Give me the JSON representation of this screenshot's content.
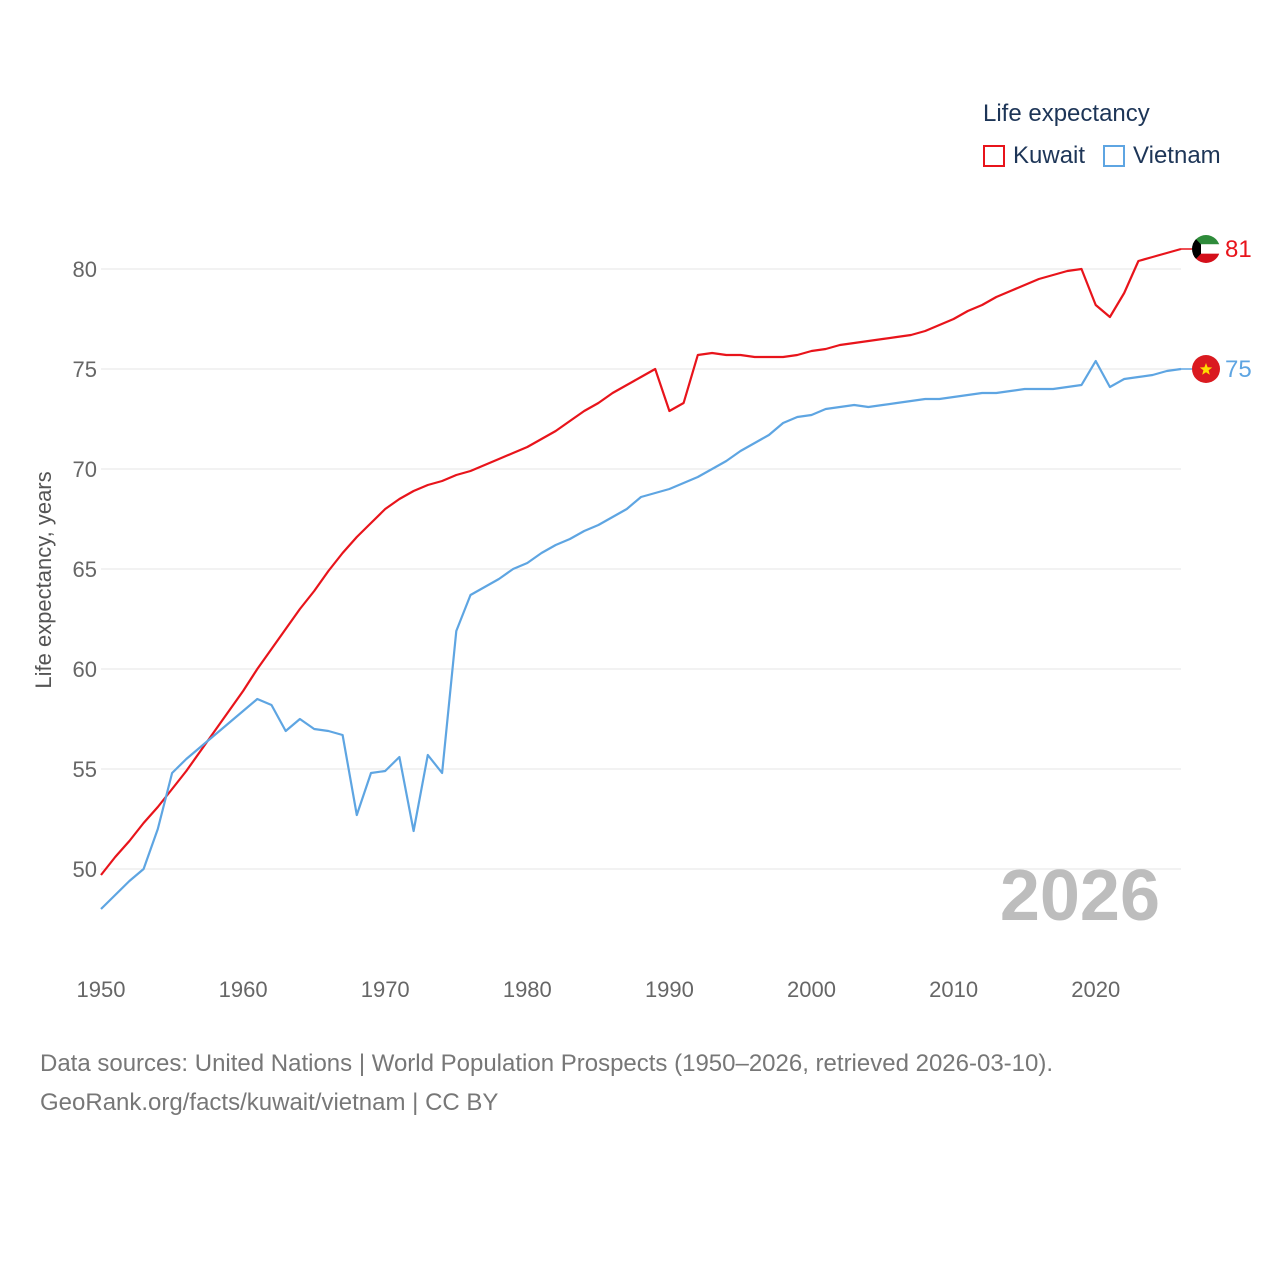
{
  "legend": {
    "title": "Life expectancy",
    "items": [
      {
        "label": "Kuwait",
        "color": "#e8141b"
      },
      {
        "label": "Vietnam",
        "color": "#5ea5e2"
      }
    ]
  },
  "footer": {
    "line1": "Data sources: United Nations | World Population Prospects (1950–2026, retrieved 2026-03-10).",
    "line2": "GeoRank.org/facts/kuwait/vietnam | CC BY"
  },
  "chart_data": {
    "type": "line",
    "title": "",
    "xlabel": "",
    "ylabel": "Life expectancy, years",
    "xlim": [
      1950,
      2026
    ],
    "ylim": [
      46.5,
      83
    ],
    "x_ticks": [
      "1950",
      "1960",
      "1970",
      "1980",
      "1990",
      "2000",
      "2010",
      "2020"
    ],
    "y_ticks": [
      "50",
      "55",
      "60",
      "65",
      "70",
      "75",
      "80"
    ],
    "year_label": "2026",
    "x": [
      1950,
      1951,
      1952,
      1953,
      1954,
      1955,
      1956,
      1957,
      1958,
      1959,
      1960,
      1961,
      1962,
      1963,
      1964,
      1965,
      1966,
      1967,
      1968,
      1969,
      1970,
      1971,
      1972,
      1973,
      1974,
      1975,
      1976,
      1977,
      1978,
      1979,
      1980,
      1981,
      1982,
      1983,
      1984,
      1985,
      1986,
      1987,
      1988,
      1989,
      1990,
      1991,
      1992,
      1993,
      1994,
      1995,
      1996,
      1997,
      1998,
      1999,
      2000,
      2001,
      2002,
      2003,
      2004,
      2005,
      2006,
      2007,
      2008,
      2009,
      2010,
      2011,
      2012,
      2013,
      2014,
      2015,
      2016,
      2017,
      2018,
      2019,
      2020,
      2021,
      2022,
      2023,
      2024,
      2025,
      2026
    ],
    "series": [
      {
        "name": "Kuwait",
        "color": "#e8141b",
        "end_label": "81",
        "flag": "kuwait-flag-icon",
        "values": [
          49.7,
          50.6,
          51.4,
          52.3,
          53.1,
          54.0,
          54.9,
          55.9,
          56.9,
          57.9,
          58.9,
          60.0,
          61.0,
          62.0,
          63.0,
          63.9,
          64.9,
          65.8,
          66.6,
          67.3,
          68.0,
          68.5,
          68.9,
          69.2,
          69.4,
          69.7,
          69.9,
          70.2,
          70.5,
          70.8,
          71.1,
          71.5,
          71.9,
          72.4,
          72.9,
          73.3,
          73.8,
          74.2,
          74.6,
          75.0,
          72.9,
          73.3,
          75.7,
          75.8,
          75.7,
          75.7,
          75.6,
          75.6,
          75.6,
          75.7,
          75.9,
          76.0,
          76.2,
          76.3,
          76.4,
          76.5,
          76.6,
          76.7,
          76.9,
          77.2,
          77.5,
          77.9,
          78.2,
          78.6,
          78.9,
          79.2,
          79.5,
          79.7,
          79.9,
          80.0,
          78.2,
          77.6,
          78.8,
          80.4,
          80.6,
          80.8,
          81.0
        ]
      },
      {
        "name": "Vietnam",
        "color": "#5ea5e2",
        "end_label": "75",
        "flag": "vietnam-flag-icon",
        "values": [
          48.0,
          48.7,
          49.4,
          50.0,
          52.0,
          54.8,
          55.5,
          56.1,
          56.7,
          57.3,
          57.9,
          58.5,
          58.2,
          56.9,
          57.5,
          57.0,
          56.9,
          56.7,
          52.7,
          54.8,
          54.9,
          55.6,
          51.9,
          55.7,
          54.8,
          61.9,
          63.7,
          64.1,
          64.5,
          65.0,
          65.3,
          65.8,
          66.2,
          66.5,
          66.9,
          67.2,
          67.6,
          68.0,
          68.6,
          68.8,
          69.0,
          69.3,
          69.6,
          70.0,
          70.4,
          70.9,
          71.3,
          71.7,
          72.3,
          72.6,
          72.7,
          73.0,
          73.1,
          73.2,
          73.1,
          73.2,
          73.3,
          73.4,
          73.5,
          73.5,
          73.6,
          73.7,
          73.8,
          73.8,
          73.9,
          74.0,
          74.0,
          74.0,
          74.1,
          74.2,
          75.4,
          74.1,
          74.5,
          74.6,
          74.7,
          74.9,
          75.0
        ]
      }
    ]
  }
}
